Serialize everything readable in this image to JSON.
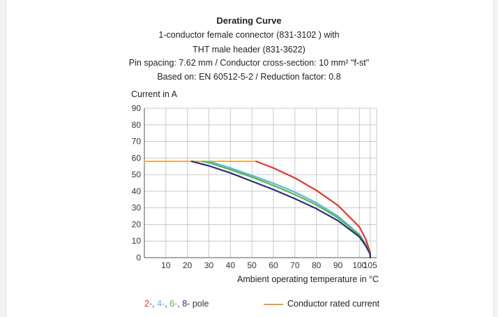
{
  "chart_data": {
    "type": "line",
    "title": "Derating Curve",
    "subtitle_lines": [
      "1-conductor female connector (831-3102 ) with",
      "THT male header (831-3622)",
      "Pin spacing: 7.62 mm / Conductor cross-section: 10 mm² \"f-st\"",
      "Based on: EN 60512-5-2 / Reduction factor: 0.8"
    ],
    "ylabel": "Current in A",
    "xlabel": "Ambient operating temperature in °C",
    "xlim": [
      0,
      108
    ],
    "ylim": [
      0,
      90
    ],
    "x_ticks": [
      10,
      20,
      30,
      40,
      50,
      60,
      70,
      80,
      90,
      100,
      105
    ],
    "y_ticks": [
      10,
      20,
      30,
      40,
      50,
      60,
      70,
      80,
      90
    ],
    "origin_label": "0",
    "grid": true,
    "series": [
      {
        "name": "2-",
        "color": "#e2362b",
        "points": [
          [
            52,
            58
          ],
          [
            60,
            54
          ],
          [
            70,
            48
          ],
          [
            80,
            40.5
          ],
          [
            90,
            31.5
          ],
          [
            100,
            18.5
          ],
          [
            103,
            11
          ],
          [
            105,
            3
          ],
          [
            105,
            0
          ]
        ]
      },
      {
        "name": "4-",
        "color": "#5ab7e0",
        "points": [
          [
            30,
            58
          ],
          [
            40,
            54
          ],
          [
            50,
            49.5
          ],
          [
            60,
            44.8
          ],
          [
            70,
            39.5
          ],
          [
            80,
            33
          ],
          [
            90,
            25
          ],
          [
            100,
            14
          ],
          [
            103,
            8
          ],
          [
            105,
            2
          ],
          [
            105,
            0
          ]
        ]
      },
      {
        "name": "6-",
        "color": "#56b848",
        "points": [
          [
            27,
            58
          ],
          [
            30,
            57.2
          ],
          [
            40,
            53
          ],
          [
            50,
            48.5
          ],
          [
            60,
            43.5
          ],
          [
            70,
            38
          ],
          [
            80,
            31.8
          ],
          [
            90,
            24
          ],
          [
            100,
            13.5
          ],
          [
            103,
            7.5
          ],
          [
            105,
            2
          ],
          [
            105,
            0
          ]
        ]
      },
      {
        "name": "8-",
        "color": "#2a2f7a",
        "points": [
          [
            22,
            58
          ],
          [
            30,
            55.3
          ],
          [
            40,
            51
          ],
          [
            50,
            46
          ],
          [
            60,
            41
          ],
          [
            70,
            35.5
          ],
          [
            80,
            29.5
          ],
          [
            90,
            22.3
          ],
          [
            100,
            12.5
          ],
          [
            103,
            7
          ],
          [
            105,
            2
          ],
          [
            105,
            0
          ]
        ]
      },
      {
        "name": "Conductor rated current",
        "color": "#f39b2d",
        "points": [
          [
            0,
            58
          ],
          [
            52,
            58
          ]
        ]
      }
    ],
    "legend": {
      "pole_items": [
        "2-",
        "4-",
        "6-",
        "8-"
      ],
      "pole_separator": ", ",
      "pole_suffix": " pole",
      "rated_label": "Conductor rated current",
      "placement": "bottom"
    }
  }
}
